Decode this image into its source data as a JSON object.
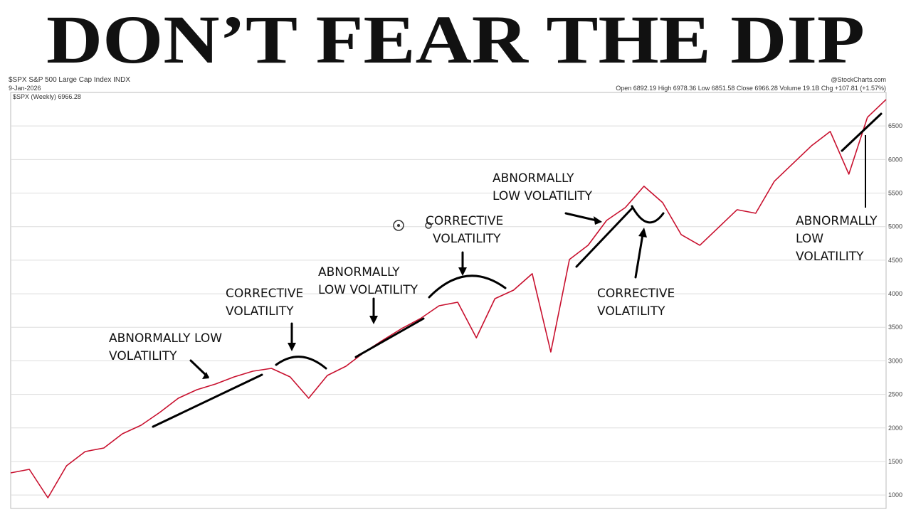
{
  "chart_data": {
    "type": "line",
    "title": "DON’T FEAR THE DIP",
    "ticker": "$SPX S&P 500 Large Cap Index INDX",
    "date": "9-Jan-2026",
    "legend_label": "$SPX (Weekly) 6966.28",
    "quote_line": "Open 6892.19 High 6978.36 Low 6851.58 Close 6966.28 Volume 19.1B Chg +107.81 (+1.57%)",
    "source": "@StockCharts.com",
    "annotations": [
      "ABNORMALLY LOW",
      "VOLATILITY",
      "CORRECTIVE",
      "VOLATILITY",
      "ABNORMALLY",
      "LOW VOLATILITY",
      "CORRECTIVE",
      "VOLATILITY",
      "ABNORMALLY",
      "LOW VOLATILITY",
      "CORRECTIVE",
      "VOLATILITY",
      "ABNORMALLY",
      "LOW",
      "VOLATILITY"
    ],
    "categories": [
      null,
      null,
      null,
      null,
      null,
      null,
      null,
      null,
      null,
      null,
      null,
      null,
      null,
      null,
      null,
      null,
      null,
      null,
      null,
      null,
      null,
      null,
      null,
      null,
      null,
      null,
      null,
      null,
      null,
      null,
      null,
      null,
      null,
      null,
      null,
      null,
      null,
      null,
      null,
      null,
      null,
      null,
      null,
      null,
      null,
      null,
      null,
      null
    ],
    "series": [
      {
        "name": "$SPX",
        "color": "#c8102e",
        "values": [
          1330,
          1383,
          959,
          1436,
          1648,
          1701,
          1913,
          2040,
          2231,
          2443,
          2570,
          2655,
          2761,
          2846,
          2888,
          2761,
          2443,
          2782,
          2920,
          3132,
          3312,
          3482,
          3630,
          3821,
          3874,
          3344,
          3927,
          4054,
          4298,
          3132,
          4510,
          4722,
          5093,
          5284,
          5602,
          5358,
          4881,
          4722,
          4987,
          5252,
          5199,
          5676,
          5941,
          6206,
          6418,
          5782,
          6630,
          6895
        ]
      }
    ],
    "ylim": [
      800,
      7000
    ],
    "yticks": [
      6500,
      6000,
      5500,
      5000,
      4500,
      4000,
      3500,
      3000,
      2500,
      2000,
      1500,
      1000
    ],
    "grid": true
  }
}
